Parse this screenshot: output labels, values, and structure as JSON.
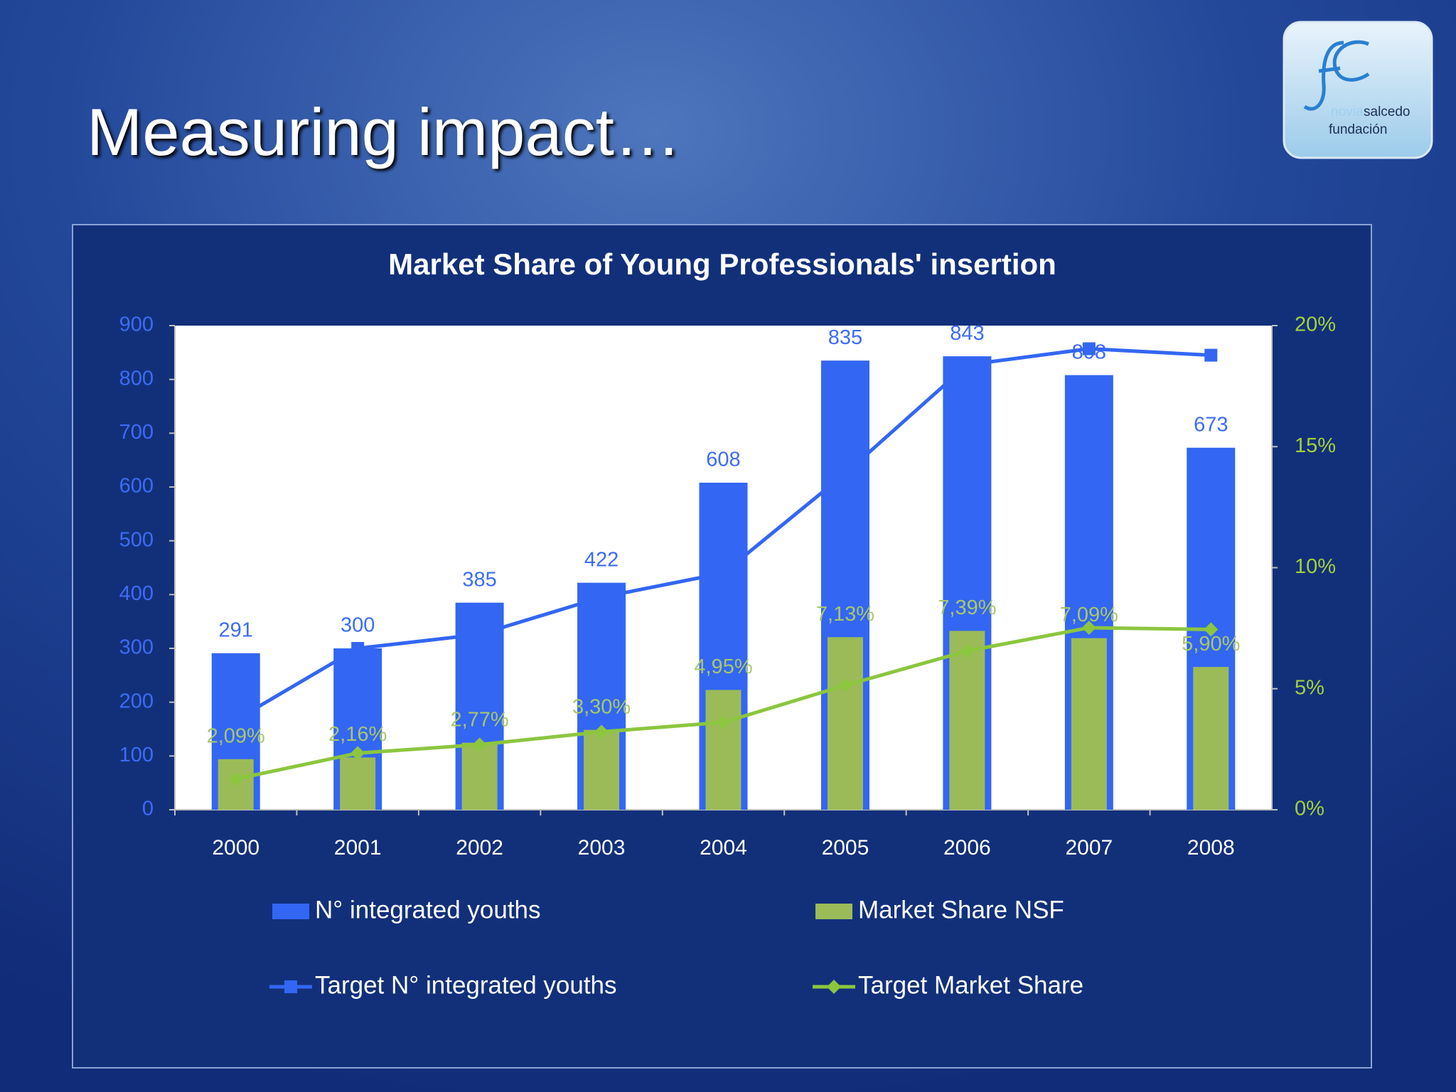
{
  "slide": {
    "title": "Measuring impact…",
    "logo": {
      "prefix": "novia",
      "name": "salcedo",
      "subtitle": "fundación"
    }
  },
  "chart_data": {
    "type": "combo",
    "title": "Market Share of Young Professionals' insertion",
    "categories": [
      "2000",
      "2001",
      "2002",
      "2003",
      "2004",
      "2005",
      "2006",
      "2007",
      "2008"
    ],
    "series": [
      {
        "name": "N° integrated youths",
        "type": "bar",
        "color": "#3366f2",
        "values": [
          291,
          300,
          385,
          422,
          608,
          835,
          843,
          808,
          673
        ]
      },
      {
        "name": "Market Share NSF",
        "type": "bar",
        "color": "#9bbb59",
        "axis": "y2",
        "values": [
          2.09,
          2.16,
          2.77,
          3.3,
          4.95,
          7.13,
          7.39,
          7.09,
          5.9
        ],
        "value_labels": [
          "2,09%",
          "2,16%",
          "2,77%",
          "3,30%",
          "4,95%",
          "7,13%",
          "7,39%",
          "7,09%",
          "5,90%"
        ]
      },
      {
        "name": "Target N° integrated youths",
        "type": "line",
        "marker": "square",
        "color": "#3366f2",
        "values": [
          167,
          300,
          326,
          395,
          440,
          625,
          827,
          857,
          845
        ]
      },
      {
        "name": "Target Market Share",
        "type": "line",
        "marker": "diamond",
        "color": "#8cc63f",
        "axis": "y2",
        "values": [
          1.27,
          2.34,
          2.69,
          3.22,
          3.61,
          5.14,
          6.56,
          7.52,
          7.45
        ]
      }
    ],
    "ylim": [
      0,
      900
    ],
    "yticks": [
      0,
      100,
      200,
      300,
      400,
      500,
      600,
      700,
      800,
      900
    ],
    "y2lim": [
      0,
      20
    ],
    "y2ticks": [
      {
        "value": 0,
        "label": "0%"
      },
      {
        "value": 5,
        "label": "5%"
      },
      {
        "value": 10,
        "label": "10%"
      },
      {
        "value": 15,
        "label": "15%"
      },
      {
        "value": 20,
        "label": "20%"
      }
    ],
    "grid": false,
    "legend": "bottom"
  }
}
